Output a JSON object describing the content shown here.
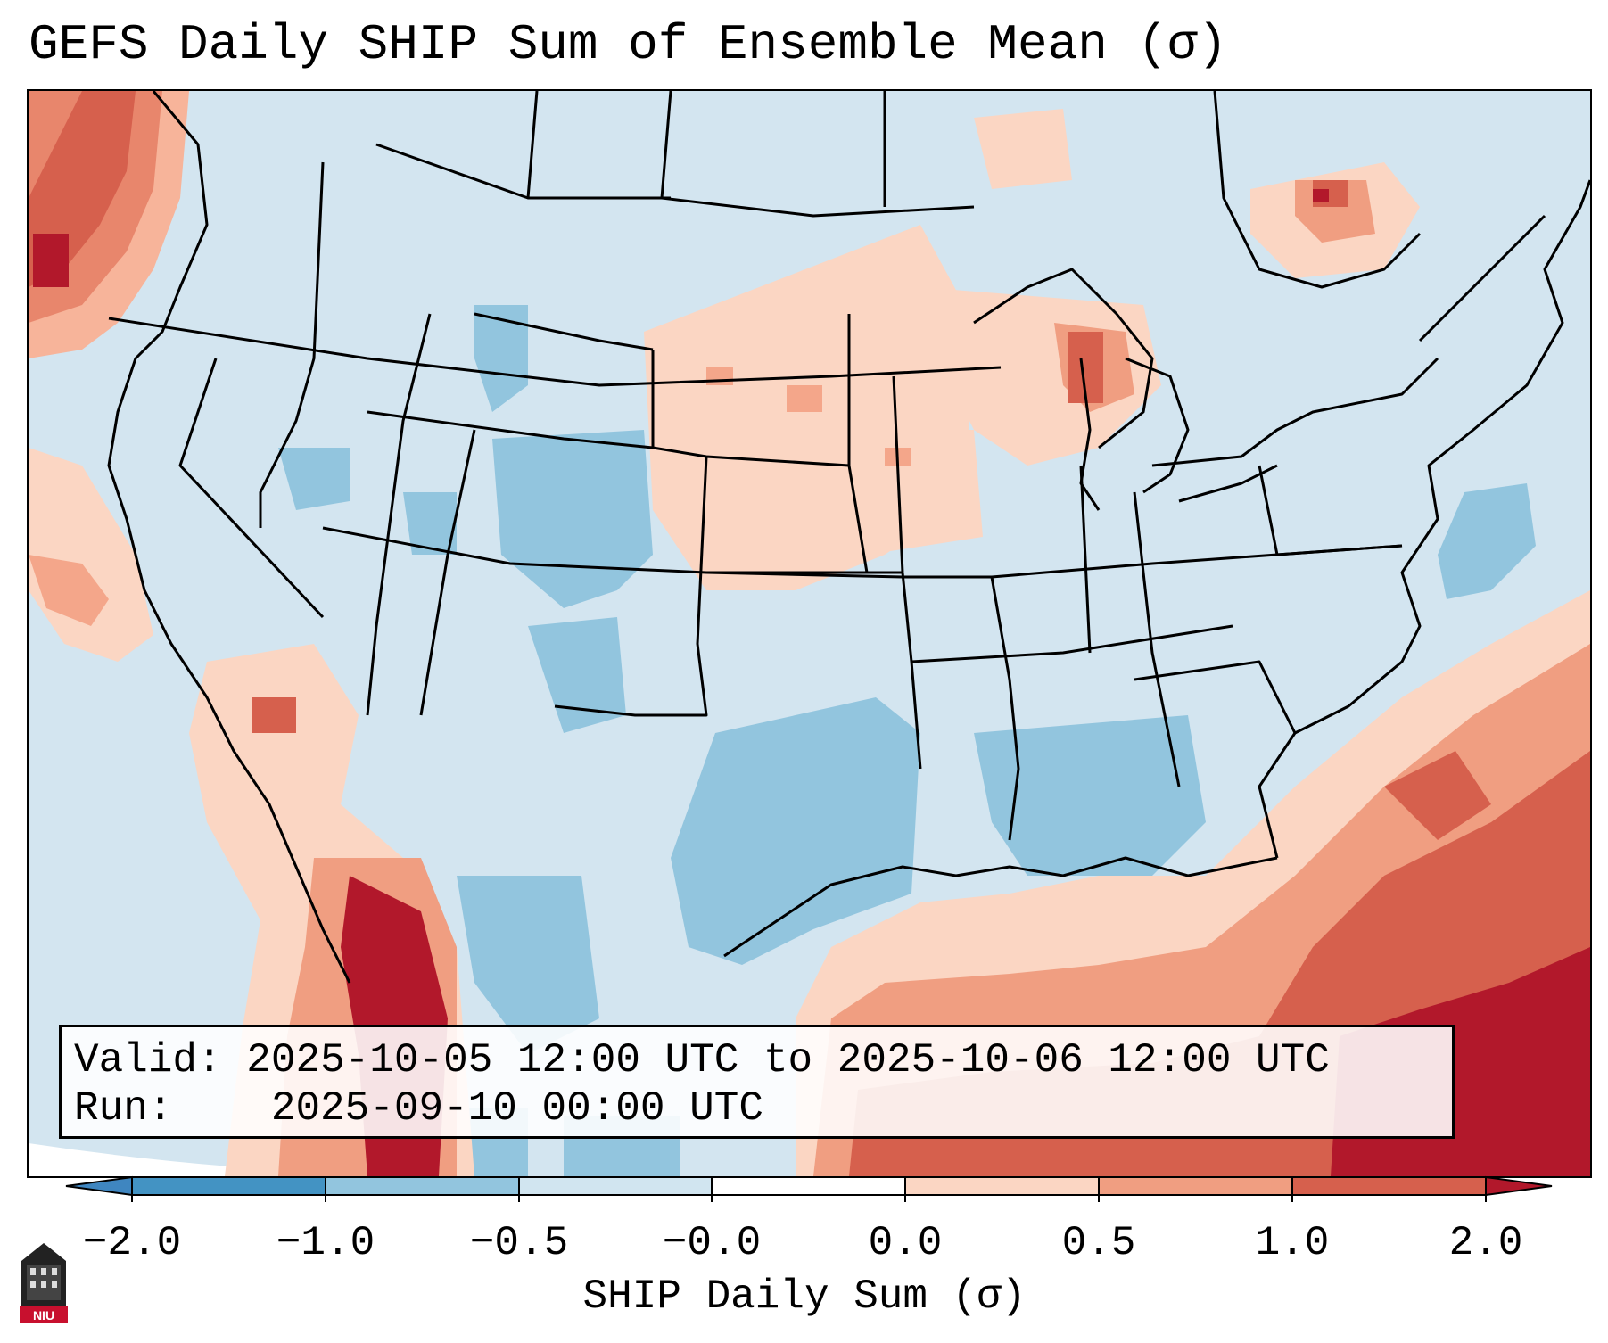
{
  "title": "GEFS Daily SHIP Sum of Ensemble Mean (σ)",
  "info": {
    "valid_label": "Valid:",
    "valid_value": "2025-10-05 12:00 UTC to 2025-10-06 12:00 UTC",
    "run_label": "Run:",
    "run_value": "2025-09-10 00:00 UTC"
  },
  "colorbar": {
    "label": "SHIP Daily Sum (σ)",
    "ticks": [
      "−2.0",
      "−1.0",
      "−0.5",
      "−0.0",
      "0.0",
      "0.5",
      "1.0",
      "2.0"
    ],
    "colors": [
      "#3f86c0",
      "#90c3df",
      "#d3e5f0",
      "#ffffff",
      "#fbd6c3",
      "#f09e81",
      "#d6604d",
      "#b2182b",
      "#67001f"
    ]
  },
  "logo": {
    "icon": "niu-building-icon",
    "text": "NIU"
  }
}
